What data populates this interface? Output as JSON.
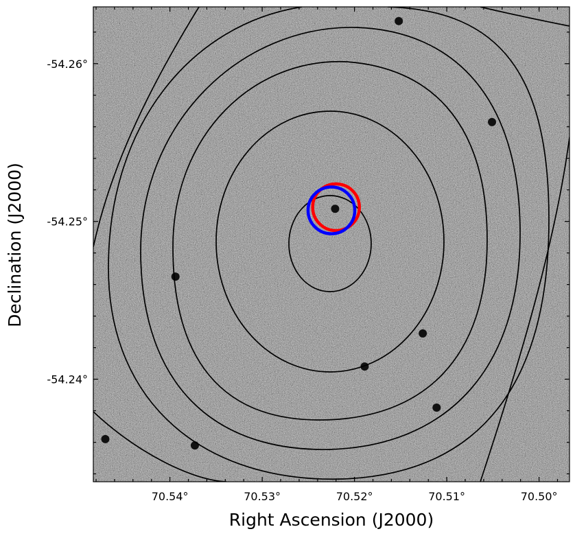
{
  "chart_data": {
    "type": "image",
    "xlabel": "Right Ascension (J2000)",
    "ylabel": "Declination (J2000)",
    "x_axis_inverted": true,
    "xlim": [
      70.5483,
      70.4967
    ],
    "ylim": [
      -54.2335,
      -54.2636
    ],
    "x_ticks": [
      {
        "value": 70.54,
        "label": "70.54°"
      },
      {
        "value": 70.53,
        "label": "70.53°"
      },
      {
        "value": 70.52,
        "label": "70.52°"
      },
      {
        "value": 70.51,
        "label": "70.51°"
      },
      {
        "value": 70.5,
        "label": "70.50°"
      }
    ],
    "y_ticks": [
      {
        "value": -54.26,
        "label": "-54.26°"
      },
      {
        "value": -54.25,
        "label": "-54.25°"
      },
      {
        "value": -54.24,
        "label": "-54.24°"
      }
    ],
    "background": "grayscale noise image",
    "sources": [
      {
        "ra": 70.5221,
        "dec": -54.2508
      },
      {
        "ra": 70.5051,
        "dec": -54.2563
      },
      {
        "ra": 70.5394,
        "dec": -54.2465
      },
      {
        "ra": 70.5126,
        "dec": -54.2429
      },
      {
        "ra": 70.5189,
        "dec": -54.2408
      },
      {
        "ra": 70.5111,
        "dec": -54.2382
      },
      {
        "ra": 70.5373,
        "dec": -54.2358
      },
      {
        "ra": 70.547,
        "dec": -54.2362
      },
      {
        "ra": 70.5152,
        "dec": -54.2627
      }
    ],
    "markers": [
      {
        "ra": 70.522,
        "dec": -54.2509,
        "r_deg": 0.00148,
        "color": "#ff0000"
      },
      {
        "ra": 70.5225,
        "dec": -54.2507,
        "r_deg": 0.00148,
        "color": "#0000ff"
      }
    ],
    "contour_color": "#000000"
  }
}
